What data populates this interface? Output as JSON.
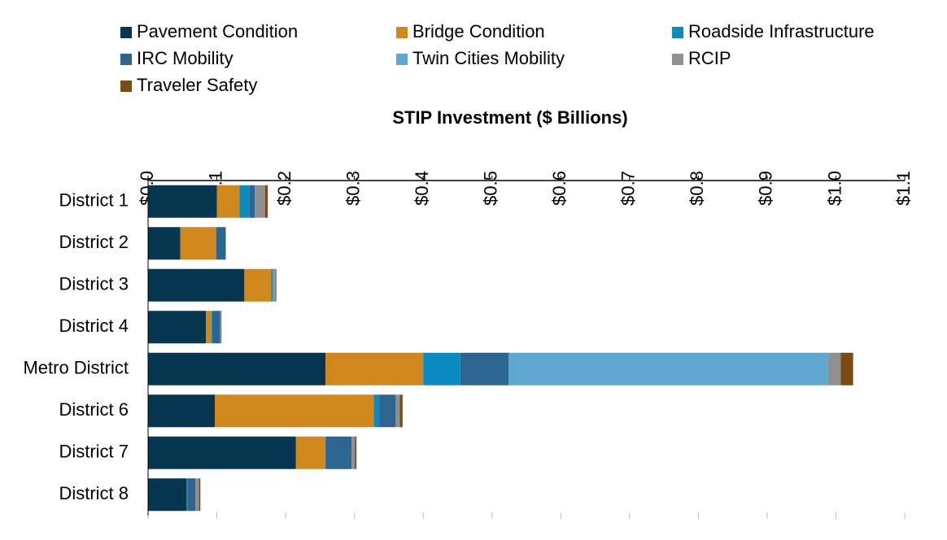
{
  "chart_data": {
    "type": "stacked-barh",
    "x_label": "STIP Investment ($ Billions)",
    "categories": [
      "District 1",
      "District 2",
      "District 3",
      "District 4",
      "Metro District",
      "District 6",
      "District 7",
      "District 8"
    ],
    "series": [
      {
        "name": "Pavement Condition",
        "color": "#063650",
        "values": [
          0.1,
          0.047,
          0.14,
          0.084,
          0.258,
          0.097,
          0.215,
          0.056
        ]
      },
      {
        "name": "Bridge Condition",
        "color": "#d0881e",
        "values": [
          0.033,
          0.052,
          0.039,
          0.008,
          0.142,
          0.231,
          0.043,
          0
        ]
      },
      {
        "name": "Roadside Infrastructure",
        "color": "#0a8bc0",
        "values": [
          0.014,
          0,
          0.002,
          0.002,
          0.054,
          0.008,
          0,
          0.001
        ]
      },
      {
        "name": "IRC Mobility",
        "color": "#2b6590",
        "values": [
          0.008,
          0.014,
          0,
          0.011,
          0.07,
          0.024,
          0.038,
          0.012
        ]
      },
      {
        "name": "Twin Cities Mobility",
        "color": "#5ea7d0",
        "values": [
          0,
          0,
          0,
          0,
          0.464,
          0,
          0,
          0
        ]
      },
      {
        "name": "RCIP",
        "color": "#8e8f93",
        "values": [
          0.015,
          0,
          0.006,
          0.002,
          0.019,
          0.006,
          0.005,
          0.005
        ]
      },
      {
        "name": "Traveler Safety",
        "color": "#7a4b12",
        "values": [
          0.004,
          0,
          0,
          0,
          0.018,
          0.004,
          0.002,
          0.002
        ]
      }
    ],
    "xlim": [
      0,
      1.1
    ],
    "xticks": [
      {
        "value": 0,
        "label": "$0.0"
      },
      {
        "value": 0.1,
        "label": "$0.1"
      },
      {
        "value": 0.2,
        "label": "$0.2"
      },
      {
        "value": 0.3,
        "label": "$0.3"
      },
      {
        "value": 0.4,
        "label": "$0.4"
      },
      {
        "value": 0.5,
        "label": "$0.5"
      },
      {
        "value": 0.6,
        "label": "$0.6"
      },
      {
        "value": 0.7,
        "label": "$0.7"
      },
      {
        "value": 0.8,
        "label": "$0.8"
      },
      {
        "value": 0.9,
        "label": "$0.9"
      },
      {
        "value": 1.0,
        "label": "$1.0"
      },
      {
        "value": 1.1,
        "label": "$1.1"
      }
    ],
    "legend": "top"
  }
}
